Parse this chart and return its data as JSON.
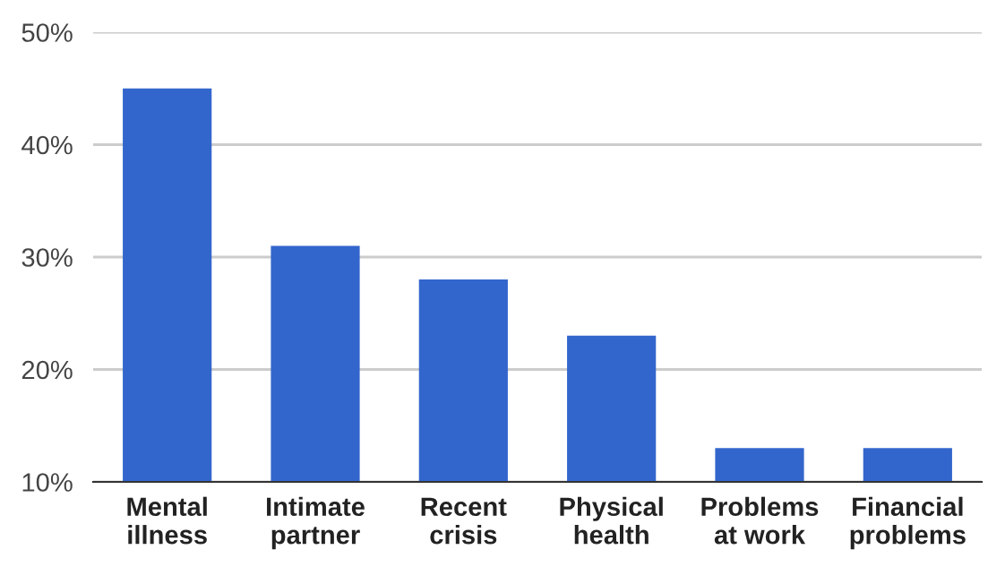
{
  "chart_data": {
    "type": "bar",
    "categories": [
      "Mental\nillness",
      "Intimate\npartner",
      "Recent\ncrisis",
      "Physical\nhealth",
      "Problems\nat work",
      "Financial\nproblems"
    ],
    "values": [
      45,
      31,
      28,
      23,
      13,
      13
    ],
    "color": "#3366cc",
    "ylim": [
      10,
      50
    ],
    "yticks": [
      {
        "value": 10,
        "label": "10%"
      },
      {
        "value": 20,
        "label": "20%"
      },
      {
        "value": 30,
        "label": "30%"
      },
      {
        "value": 40,
        "label": "40%"
      },
      {
        "value": 50,
        "label": "50%"
      }
    ],
    "grid": "y"
  }
}
